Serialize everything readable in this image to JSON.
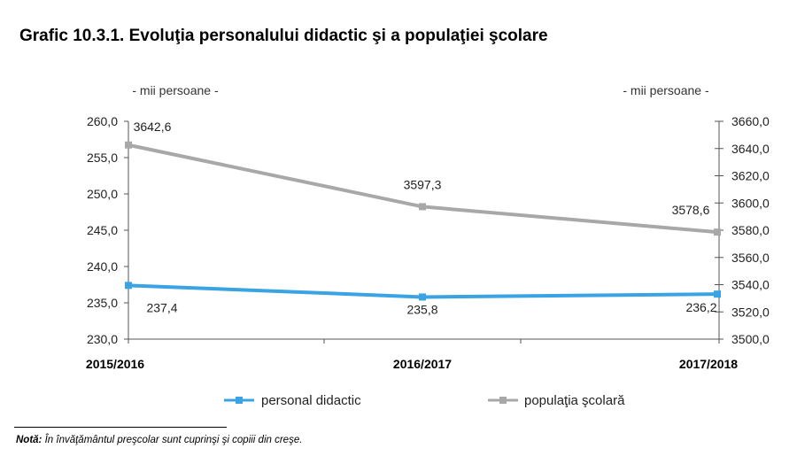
{
  "title": "Grafic 10.3.1. Evoluţia personalului didactic şi a populaţiei şcolare",
  "note": {
    "label": "Notă:",
    "text": " În învăţământul preşcolar sunt cuprinşi şi copiii din creşe."
  },
  "chart_data": {
    "type": "line",
    "categories": [
      "2015/2016",
      "2016/2017",
      "2017/2018"
    ],
    "left_axis": {
      "unit_label": "- mii persoane -",
      "ylim": [
        230,
        260
      ],
      "ticks": [
        "260,0",
        "255,0",
        "250,0",
        "245,0",
        "240,0",
        "235,0",
        "230,0"
      ]
    },
    "right_axis": {
      "unit_label": "- mii persoane -",
      "ylim": [
        3500,
        3660
      ],
      "ticks": [
        "3660,0",
        "3640,0",
        "3620,0",
        "3600,0",
        "3580,0",
        "3560,0",
        "3540,0",
        "3520,0",
        "3500,0"
      ]
    },
    "series": [
      {
        "name": "personal didactic",
        "axis": "left",
        "color": "#3aa3e3",
        "values": [
          237.4,
          235.8,
          236.2
        ],
        "labels": [
          "237,4",
          "235,8",
          "236,2"
        ]
      },
      {
        "name": "populaţia şcolară",
        "axis": "right",
        "color": "#a8a8a8",
        "values": [
          3642.6,
          3597.3,
          3578.6
        ],
        "labels": [
          "3642,6",
          "3597,3",
          "3578,6"
        ]
      }
    ],
    "grid": false,
    "legend_position": "bottom"
  }
}
